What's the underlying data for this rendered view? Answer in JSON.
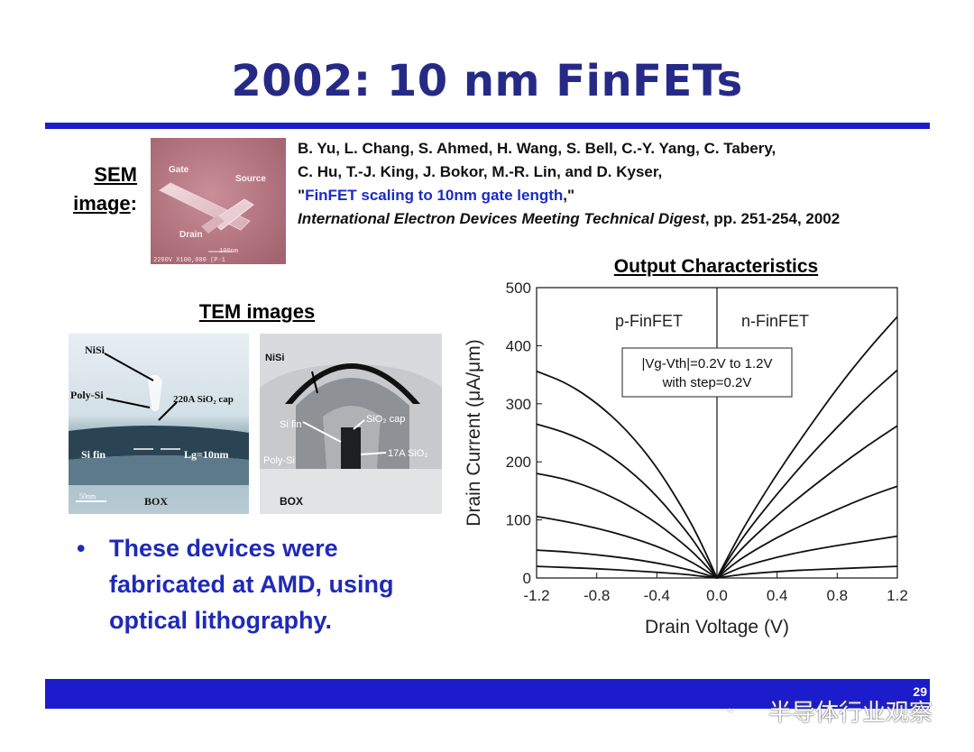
{
  "slide": {
    "title": "2002: 10 nm FinFETs",
    "page_number": "29"
  },
  "sem": {
    "label_line1": "SEM",
    "label_line2": "image",
    "label_suffix": ":",
    "image_labels": {
      "gate": "Gate",
      "source": "Source",
      "drain": "Drain",
      "scale": "100nm",
      "info": "2200V X100,000 (P-1"
    }
  },
  "citation": {
    "authors_line1": "B. Yu, L. Chang, S. Ahmed, H. Wang, S. Bell, C.-Y. Yang, C. Tabery,",
    "authors_line2": "C. Hu, T.-J. King, J. Bokor, M.-R. Lin, and D. Kyser,",
    "title_open_quote": "\"",
    "title": "FinFET scaling to 10nm gate length",
    "title_close": ",\"",
    "venue": "International Electron Devices Meeting Technical Digest",
    "pages": ", pp. 251-254, 2002"
  },
  "tem": {
    "heading": "TEM images",
    "image1_labels": {
      "nisi": "NiSi",
      "poly_si": "Poly-Si",
      "cap": "220A SiO₂ cap",
      "si_fin": "Si fin",
      "lg": "Lg=10nm",
      "box": "BOX",
      "scale": "50nm"
    },
    "image2_labels": {
      "nisi": "NiSi",
      "si_fin": "Si fin",
      "cap": "SiO₂ cap",
      "poly_si": "Poly-Si",
      "oxide": "17A SiO₂",
      "box": "BOX"
    }
  },
  "bullet": {
    "marker": "•",
    "text": "These devices were fabricated at AMD, using optical lithography."
  },
  "watermark": {
    "text": "半导体行业观察",
    "icon": "wechat-icon"
  },
  "colors": {
    "title": "#262a86",
    "rule": "#1c1ccc",
    "link_title": "#1a2cc4",
    "bullet": "#1f2ab8"
  },
  "chart_data": {
    "type": "line",
    "title": "Output Characteristics",
    "xlabel": "Drain Voltage (V)",
    "ylabel": "Drain Current (μA/μm)",
    "xlim": [
      -1.2,
      1.2
    ],
    "ylim": [
      0,
      500
    ],
    "xticks": [
      "-1.2",
      "-0.8",
      "-0.4",
      "0.0",
      "0.4",
      "0.8",
      "1.2"
    ],
    "yticks": [
      "0",
      "100",
      "200",
      "300",
      "400",
      "500"
    ],
    "region_labels": [
      "p-FinFET",
      "n-FinFET"
    ],
    "annotation_line1": "|Vg-Vth|=0.2V to 1.2V",
    "annotation_line2": "with step=0.2V",
    "n_series": [
      {
        "x": [
          0,
          0.1,
          0.2,
          0.4,
          0.6,
          0.8,
          1.0,
          1.2
        ],
        "y": [
          0,
          4,
          7,
          11,
          14,
          16,
          18,
          20
        ]
      },
      {
        "x": [
          0,
          0.1,
          0.2,
          0.4,
          0.6,
          0.8,
          1.0,
          1.2
        ],
        "y": [
          0,
          12,
          22,
          36,
          47,
          56,
          64,
          72
        ]
      },
      {
        "x": [
          0,
          0.1,
          0.2,
          0.4,
          0.6,
          0.8,
          1.0,
          1.2
        ],
        "y": [
          0,
          22,
          40,
          70,
          95,
          118,
          140,
          158
        ]
      },
      {
        "x": [
          0,
          0.1,
          0.2,
          0.4,
          0.6,
          0.8,
          1.0,
          1.2
        ],
        "y": [
          0,
          32,
          60,
          108,
          150,
          190,
          228,
          262
        ]
      },
      {
        "x": [
          0,
          0.1,
          0.2,
          0.4,
          0.6,
          0.8,
          1.0,
          1.2
        ],
        "y": [
          0,
          42,
          80,
          145,
          205,
          260,
          312,
          358
        ]
      },
      {
        "x": [
          0,
          0.1,
          0.2,
          0.4,
          0.6,
          0.8,
          1.0,
          1.2
        ],
        "y": [
          0,
          50,
          97,
          180,
          255,
          327,
          392,
          450
        ]
      }
    ],
    "p_series": [
      {
        "x": [
          0,
          -0.1,
          -0.2,
          -0.4,
          -0.6,
          -0.8,
          -1.0,
          -1.2
        ],
        "y": [
          0,
          3,
          6,
          10,
          13,
          16,
          18,
          20
        ]
      },
      {
        "x": [
          0,
          -0.1,
          -0.2,
          -0.4,
          -0.6,
          -0.8,
          -1.0,
          -1.2
        ],
        "y": [
          0,
          8,
          15,
          26,
          34,
          40,
          45,
          48
        ]
      },
      {
        "x": [
          0,
          -0.1,
          -0.2,
          -0.4,
          -0.6,
          -0.8,
          -1.0,
          -1.2
        ],
        "y": [
          0,
          17,
          32,
          55,
          72,
          86,
          97,
          106
        ]
      },
      {
        "x": [
          0,
          -0.1,
          -0.2,
          -0.4,
          -0.6,
          -0.8,
          -1.0,
          -1.2
        ],
        "y": [
          0,
          29,
          54,
          95,
          127,
          152,
          170,
          180
        ]
      },
      {
        "x": [
          0,
          -0.1,
          -0.2,
          -0.4,
          -0.6,
          -0.8,
          -1.0,
          -1.2
        ],
        "y": [
          0,
          43,
          80,
          142,
          190,
          226,
          250,
          265
        ]
      },
      {
        "x": [
          0,
          -0.1,
          -0.2,
          -0.4,
          -0.6,
          -0.8,
          -1.0,
          -1.2
        ],
        "y": [
          0,
          58,
          108,
          192,
          255,
          302,
          336,
          356
        ]
      }
    ]
  }
}
